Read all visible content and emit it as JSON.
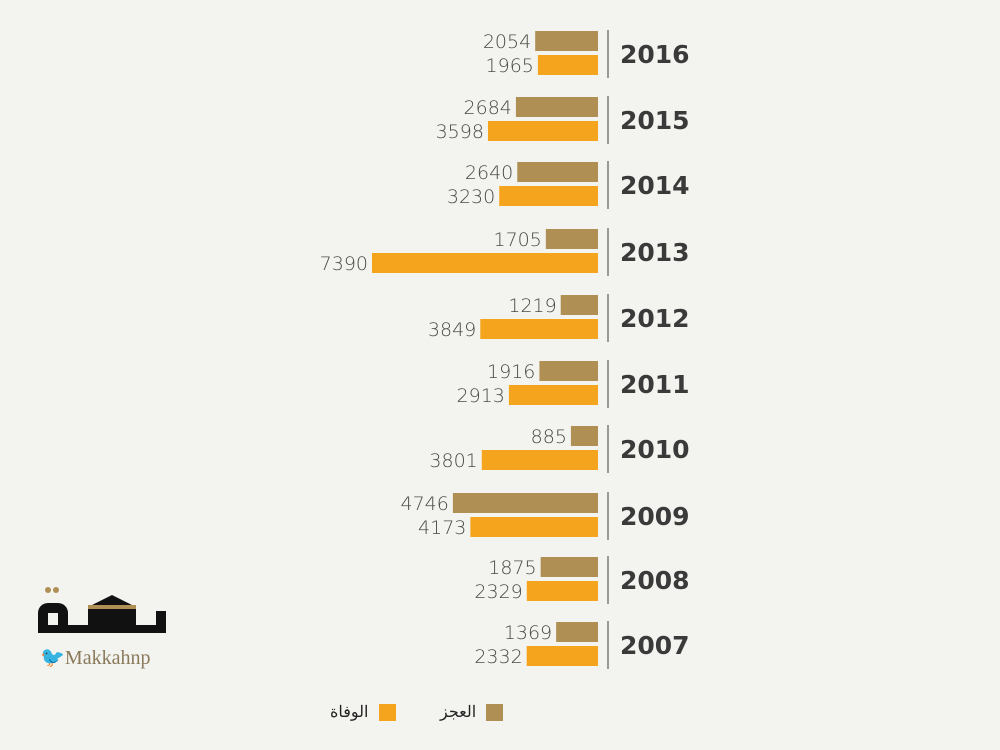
{
  "chart_data": {
    "type": "bar",
    "orientation": "horizontal",
    "categories": [
      "2016",
      "2015",
      "2014",
      "2013",
      "2012",
      "2011",
      "2010",
      "2009",
      "2008",
      "2007"
    ],
    "series": [
      {
        "name": "العجز",
        "color": "#b08f55",
        "values": [
          2054,
          2684,
          2640,
          1705,
          1219,
          1916,
          885,
          4746,
          1875,
          1369
        ]
      },
      {
        "name": "الوفاة",
        "color": "#f4a41d",
        "values": [
          1965,
          3598,
          3230,
          7390,
          3849,
          2913,
          3801,
          4173,
          2329,
          2332
        ]
      }
    ],
    "legend": "bottom",
    "grid": false
  },
  "branding": {
    "logo_text": "مكة",
    "handle": "Makkahnp"
  }
}
